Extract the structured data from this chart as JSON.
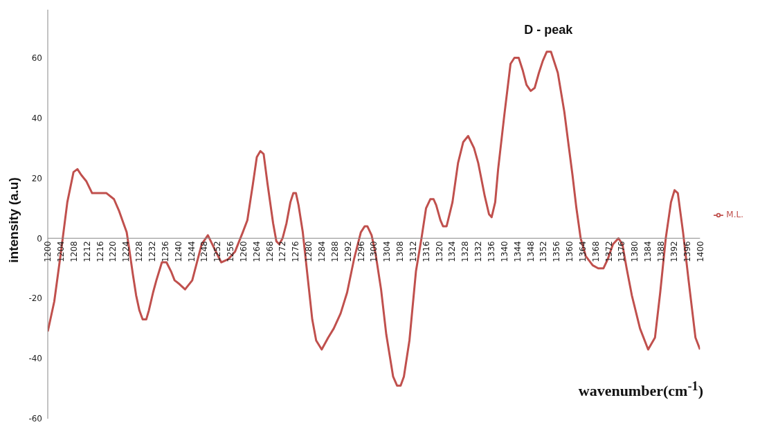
{
  "chart_data": {
    "type": "line",
    "xlabel": "wavenumber(cm$^{-1}$)",
    "ylabel": "intensity (a.u)",
    "annotations": [
      {
        "text": "D - peak",
        "x": 1353.5,
        "y": 62
      }
    ],
    "x": [
      1200,
      1202,
      1204,
      1206,
      1207.9,
      1209.1,
      1210.3,
      1211.8,
      1213.6,
      1218,
      1220.3,
      1221.9,
      1223.2,
      1224.2,
      1225.1,
      1226.1,
      1227.1,
      1228.1,
      1229.1,
      1230.2,
      1231,
      1232.3,
      1233.3,
      1235,
      1236.4,
      1237.8,
      1238.9,
      1240.1,
      1242.1,
      1244.3,
      1247.2,
      1249.1,
      1250.9,
      1253.2,
      1255.3,
      1257.4,
      1259.8,
      1261.2,
      1262.9,
      1264.1,
      1265.2,
      1266.2,
      1267.4,
      1269.1,
      1270.1,
      1271,
      1272,
      1273.2,
      1274.4,
      1275.3,
      1276.1,
      1276.9,
      1278.2,
      1279,
      1280.1,
      1281.1,
      1282.3,
      1284,
      1286,
      1287.7,
      1289.8,
      1291.8,
      1293.9,
      1296,
      1297.2,
      1298,
      1299.3,
      1300.5,
      1302.2,
      1303.8,
      1305.9,
      1307.1,
      1308.2,
      1309.2,
      1310.9,
      1312.9,
      1314.6,
      1316,
      1317.3,
      1318.3,
      1319.1,
      1320.4,
      1321.2,
      1322.3,
      1324.1,
      1325.8,
      1327.4,
      1328.9,
      1330.7,
      1332,
      1334,
      1335.3,
      1336.1,
      1337.2,
      1338.1,
      1340,
      1341.9,
      1343.1,
      1344.4,
      1345.6,
      1346.8,
      1348.1,
      1349.3,
      1350.6,
      1351.8,
      1353,
      1354.3,
      1356.4,
      1358.4,
      1359.7,
      1360.9,
      1362.1,
      1363.4,
      1365,
      1367.1,
      1368.8,
      1370.4,
      1371.7,
      1373.3,
      1375,
      1376.2,
      1377.5,
      1379.1,
      1381.6,
      1384.1,
      1386.2,
      1387.8,
      1389.5,
      1391.1,
      1392.2,
      1393.2,
      1394.8,
      1396.5,
      1398.6,
      1400
    ],
    "series": [
      {
        "name": "M.L.",
        "color": "#c0504d",
        "values": [
          -31,
          -21,
          -5,
          12,
          22,
          23,
          21,
          19,
          15,
          15,
          13,
          9,
          5,
          2,
          -4.5,
          -12,
          -19,
          -24,
          -27,
          -27,
          -24,
          -18,
          -14,
          -8,
          -8,
          -11,
          -14,
          -15,
          -17,
          -14,
          -2,
          1,
          -3,
          -8,
          -7,
          -4.5,
          2,
          6,
          18,
          27,
          29,
          28,
          18,
          5,
          -1,
          -2,
          0,
          5,
          12,
          15,
          15,
          11,
          2,
          -6,
          -17,
          -27,
          -34,
          -37,
          -33,
          -30,
          -25,
          -18,
          -7,
          2,
          4,
          4,
          1,
          -5,
          -17,
          -32,
          -46,
          -49,
          -49,
          -46,
          -34,
          -11,
          0,
          10,
          13,
          13,
          11,
          6,
          4,
          4,
          12,
          25,
          32,
          34,
          30,
          25,
          14,
          8,
          7,
          12,
          23,
          41,
          58,
          60,
          60,
          56,
          51,
          49,
          50,
          55,
          59,
          62,
          62,
          55,
          42,
          31,
          21,
          10,
          0,
          -6,
          -9,
          -10,
          -10,
          -7,
          -2,
          0,
          -2,
          -10,
          -19,
          -30,
          -37,
          -33,
          -18,
          0,
          12,
          16,
          15,
          2,
          -14,
          -33,
          -37
        ]
      }
    ],
    "xlim": [
      1200,
      1400
    ],
    "xticks": [
      1200,
      1204,
      1208,
      1212,
      1216,
      1220,
      1224,
      1228,
      1232,
      1236,
      1240,
      1244,
      1248,
      1252,
      1256,
      1260,
      1264,
      1268,
      1272,
      1276,
      1280,
      1284,
      1288,
      1292,
      1296,
      1300,
      1304,
      1308,
      1312,
      1316,
      1320,
      1324,
      1328,
      1332,
      1336,
      1340,
      1344,
      1348,
      1352,
      1356,
      1360,
      1364,
      1368,
      1372,
      1376,
      1380,
      1384,
      1388,
      1392,
      1396,
      1400
    ],
    "ylim": [
      -60,
      76
    ],
    "yticks": [
      -60,
      -40,
      -20,
      0,
      20,
      40,
      60
    ],
    "grid": false,
    "legend": "right",
    "marker": "none",
    "line_style": "solid"
  }
}
